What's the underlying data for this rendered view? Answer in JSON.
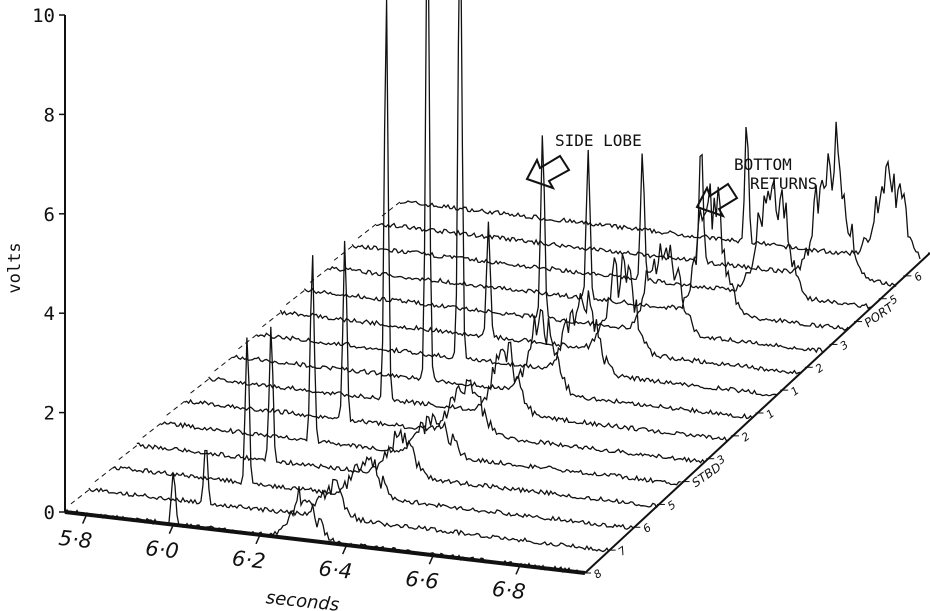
{
  "chart_data": {
    "type": "line",
    "title": "",
    "ylabel": "volts",
    "xlabel": "seconds",
    "y_ticks": [
      "0",
      "2",
      "4",
      "6",
      "8",
      "10"
    ],
    "x_ticks": [
      "5·8",
      "6·0",
      "6·2",
      "6·4",
      "6·6",
      "6·8"
    ],
    "ylim": [
      0,
      10
    ],
    "xlim": [
      5.75,
      6.95
    ],
    "depth_ticks": [
      "8",
      "7",
      "6",
      "5",
      "STBD",
      "3",
      "2",
      "1",
      "1",
      "2",
      "3",
      "PORT",
      "5",
      "6",
      "7"
    ],
    "annotations": [
      "SIDE LOBE",
      "BOTTOM",
      "RETURNS"
    ],
    "series": [
      {
        "x": [
          6.0,
          6.28,
          6.3,
          6.32
        ],
        "values": [
          1.1,
          0.3,
          0.35,
          0.35
        ]
      },
      {
        "x": [
          6.02,
          6.3,
          6.32
        ],
        "values": [
          1.2,
          0.35,
          0.4
        ]
      },
      {
        "x": [
          6.06,
          6.32,
          6.35
        ],
        "values": [
          3.0,
          0.4,
          0.45
        ]
      },
      {
        "x": [
          6.06,
          6.34,
          6.37
        ],
        "values": [
          2.7,
          0.45,
          0.5
        ]
      },
      {
        "x": [
          6.1,
          6.36,
          6.4
        ],
        "values": [
          3.8,
          0.5,
          0.55
        ]
      },
      {
        "x": [
          6.12,
          6.38,
          6.42
        ],
        "values": [
          3.7,
          0.6,
          0.65
        ]
      },
      {
        "x": [
          6.16,
          6.42,
          6.45
        ],
        "values": [
          8.2,
          0.7,
          0.75
        ]
      },
      {
        "x": [
          6.2,
          6.45,
          6.48
        ],
        "values": [
          9.5,
          0.8,
          0.85
        ]
      },
      {
        "x": [
          6.22,
          6.48,
          6.52
        ],
        "values": [
          9.6,
          0.9,
          0.95
        ]
      },
      {
        "x": [
          6.23,
          6.52,
          6.55
        ],
        "values": [
          2.3,
          1.0,
          1.05
        ]
      },
      {
        "x": [
          6.3,
          6.56,
          6.6
        ],
        "values": [
          3.8,
          1.15,
          1.2
        ]
      },
      {
        "x": [
          6.35,
          6.62,
          6.65
        ],
        "values": [
          3.0,
          1.3,
          1.35
        ]
      },
      {
        "x": [
          6.42,
          6.7,
          6.74
        ],
        "values": [
          2.6,
          1.4,
          1.45
        ]
      },
      {
        "x": [
          6.5,
          6.78,
          6.82
        ],
        "values": [
          2.5,
          1.6,
          1.65
        ]
      },
      {
        "x": [
          6.55,
          6.86,
          6.9
        ],
        "values": [
          2.5,
          1.0,
          1.05
        ]
      }
    ]
  }
}
